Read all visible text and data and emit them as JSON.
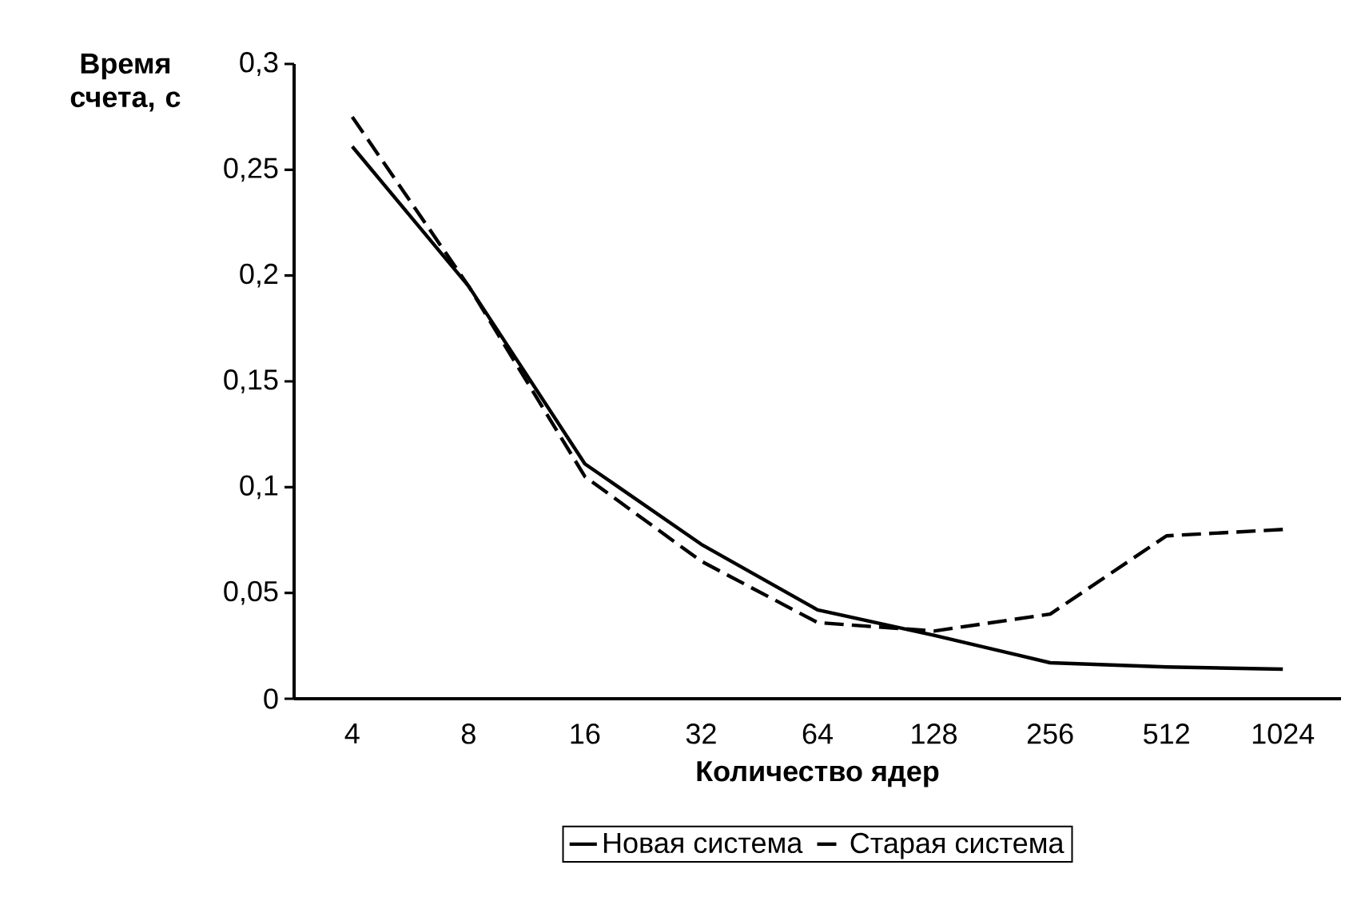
{
  "chart_data": {
    "type": "line",
    "xlabel": "Количество ядер",
    "ylabel": "Время счета, с",
    "categories": [
      "4",
      "8",
      "16",
      "32",
      "64",
      "128",
      "256",
      "512",
      "1024"
    ],
    "ylim": [
      0,
      0.3
    ],
    "yticks": [
      0,
      {
        "value": 0.05,
        "label": "0,05"
      },
      {
        "value": 0.1,
        "label": "0,1"
      },
      {
        "value": 0.15,
        "label": "0,15"
      },
      {
        "value": 0.2,
        "label": "0,2"
      },
      {
        "value": 0.25,
        "label": "0,25"
      },
      {
        "value": 0.3,
        "label": "0,3"
      }
    ],
    "grid": false,
    "legend": "bottom",
    "marker": "none",
    "series": [
      {
        "name": "Новая система",
        "color": "#000000",
        "line_style": "solid",
        "values": [
          0.261,
          0.195,
          0.111,
          0.073,
          0.042,
          0.03,
          0.017,
          0.015,
          0.014
        ]
      },
      {
        "name": "Старая система",
        "color": "#000000",
        "line_style": "dashed",
        "values": [
          0.275,
          0.195,
          0.105,
          0.065,
          0.036,
          0.032,
          0.04,
          0.077,
          0.08
        ]
      }
    ]
  }
}
